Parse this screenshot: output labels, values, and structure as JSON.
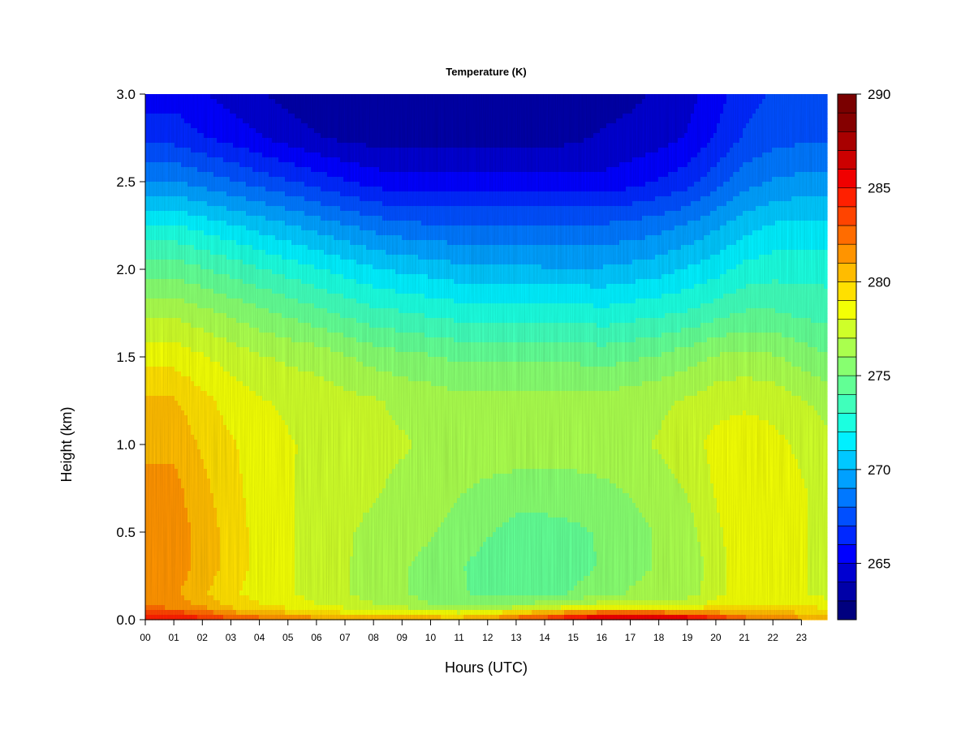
{
  "chart_data": {
    "type": "heatmap",
    "title": "Temperature (K)",
    "xlabel": "Hours (UTC)",
    "ylabel": "Height (km)",
    "x_ticks": [
      "00",
      "01",
      "02",
      "03",
      "04",
      "05",
      "06",
      "07",
      "08",
      "09",
      "10",
      "11",
      "12",
      "13",
      "14",
      "15",
      "16",
      "17",
      "18",
      "19",
      "20",
      "21",
      "22",
      "23"
    ],
    "xlim": [
      0,
      23.9
    ],
    "y_ticks": [
      "0.0",
      "0.5",
      "1.0",
      "1.5",
      "2.0",
      "2.5",
      "3.0"
    ],
    "ylim": [
      0,
      3.0
    ],
    "colorbar": {
      "min": 262,
      "max": 290,
      "step": 1,
      "tick_labels": [
        "265",
        "270",
        "275",
        "280",
        "285",
        "290"
      ],
      "colors": [
        "#00007f",
        "#0000a8",
        "#0000d1",
        "#0000ff",
        "#0028ff",
        "#004fff",
        "#0078ff",
        "#00a0ff",
        "#00c8ff",
        "#00f0ff",
        "#1bffe0",
        "#40ffbb",
        "#62ff95",
        "#87ff70",
        "#aaff4e",
        "#cfff29",
        "#f3ff05",
        "#ffe000",
        "#ffbc00",
        "#ff9400",
        "#ff6c00",
        "#ff4400",
        "#ff2000",
        "#f00000",
        "#cc0000",
        "#a80000",
        "#850000",
        "#7a0000"
      ]
    },
    "heights_km": [
      0.0,
      0.03,
      0.08,
      0.15,
      0.3,
      0.5,
      0.75,
      1.0,
      1.25,
      1.5,
      1.75,
      2.0,
      2.25,
      2.5,
      2.75,
      3.0
    ],
    "hours": [
      0,
      1,
      2,
      3,
      4,
      5,
      6,
      7,
      8,
      9,
      10,
      11,
      12,
      13,
      14,
      15,
      16,
      17,
      18,
      19,
      20,
      21,
      22,
      23,
      23.9
    ],
    "values_K": [
      [
        285.5,
        285.2,
        284.6,
        283.6,
        282.9,
        282.3,
        281.8,
        281.3,
        281.3,
        281.2,
        281.1,
        281.1,
        281.6,
        283.0,
        284.0,
        286.0,
        287.5,
        287.5,
        287.5,
        287.0,
        285.0,
        283.0,
        282.0,
        281.5,
        281.3
      ],
      [
        284.0,
        283.8,
        283.0,
        281.6,
        281.0,
        280.3,
        279.8,
        279.3,
        279.0,
        279.0,
        278.8,
        278.6,
        279.0,
        280.6,
        281.6,
        282.6,
        283.5,
        283.5,
        283.5,
        282.8,
        281.8,
        281.0,
        280.6,
        280.3,
        280.2
      ],
      [
        281.5,
        281.5,
        280.8,
        279.6,
        279.1,
        278.6,
        278.1,
        277.6,
        277.1,
        276.6,
        276.1,
        276.0,
        275.9,
        276.1,
        276.6,
        277.1,
        277.6,
        277.6,
        277.6,
        277.6,
        278.6,
        279.1,
        278.9,
        278.8,
        278.6
      ],
      [
        281.0,
        281.2,
        280.2,
        279.2,
        278.6,
        278.1,
        277.6,
        277.1,
        276.6,
        276.1,
        275.6,
        275.1,
        274.8,
        274.6,
        274.6,
        275.1,
        275.6,
        276.1,
        276.6,
        276.6,
        277.6,
        278.6,
        278.6,
        278.1,
        277.6
      ],
      [
        281.6,
        281.6,
        280.6,
        279.6,
        278.6,
        278.1,
        277.6,
        277.1,
        276.6,
        276.1,
        275.6,
        275.1,
        274.6,
        274.1,
        274.1,
        274.6,
        275.1,
        275.6,
        276.1,
        276.1,
        277.6,
        278.6,
        278.6,
        278.1,
        277.6
      ],
      [
        281.6,
        281.6,
        280.6,
        279.6,
        278.6,
        278.1,
        277.6,
        277.1,
        276.8,
        276.6,
        276.1,
        275.6,
        275.1,
        274.6,
        274.6,
        274.8,
        275.1,
        275.6,
        276.1,
        276.6,
        277.8,
        278.6,
        278.6,
        278.1,
        277.6
      ],
      [
        281.3,
        281.3,
        280.3,
        279.3,
        278.6,
        278.1,
        277.6,
        277.3,
        277.1,
        276.8,
        276.6,
        276.1,
        275.8,
        275.6,
        275.6,
        275.6,
        275.8,
        276.1,
        276.6,
        277.1,
        278.1,
        278.8,
        278.6,
        278.1,
        277.6
      ],
      [
        280.8,
        280.8,
        279.8,
        279.1,
        278.6,
        278.1,
        277.8,
        277.6,
        277.3,
        277.1,
        276.8,
        276.6,
        276.6,
        276.6,
        276.6,
        276.6,
        276.6,
        276.8,
        277.1,
        277.6,
        278.3,
        278.6,
        278.3,
        277.8,
        277.3
      ],
      [
        280.1,
        280.1,
        279.3,
        278.6,
        278.1,
        277.8,
        277.6,
        277.3,
        277.1,
        276.8,
        276.6,
        276.3,
        276.3,
        276.3,
        276.3,
        276.3,
        276.3,
        276.6,
        276.8,
        277.1,
        277.6,
        277.8,
        277.6,
        277.1,
        276.6
      ],
      [
        278.6,
        278.6,
        278.1,
        277.6,
        277.1,
        276.8,
        276.6,
        276.1,
        275.6,
        275.3,
        275.1,
        274.8,
        274.8,
        274.8,
        274.8,
        274.8,
        274.6,
        274.8,
        275.1,
        275.6,
        276.1,
        276.3,
        276.1,
        275.6,
        275.1
      ],
      [
        276.8,
        276.8,
        276.3,
        275.8,
        275.3,
        274.8,
        274.3,
        273.8,
        273.3,
        273.1,
        272.8,
        272.6,
        272.6,
        272.6,
        272.6,
        272.6,
        272.3,
        272.6,
        272.8,
        273.1,
        273.6,
        274.1,
        274.1,
        273.8,
        273.6
      ],
      [
        274.6,
        274.6,
        274.1,
        273.6,
        273.1,
        272.6,
        272.1,
        271.6,
        271.1,
        270.8,
        270.6,
        270.3,
        270.3,
        270.3,
        270.1,
        270.1,
        270.1,
        270.3,
        270.6,
        271.1,
        271.6,
        272.3,
        272.6,
        272.6,
        272.6
      ],
      [
        272.1,
        272.1,
        271.6,
        271.1,
        270.6,
        270.1,
        269.6,
        269.1,
        268.6,
        268.3,
        268.1,
        268.1,
        268.1,
        268.1,
        268.1,
        268.1,
        268.1,
        268.3,
        268.6,
        269.1,
        269.8,
        270.6,
        271.1,
        271.3,
        271.3
      ],
      [
        269.1,
        269.1,
        268.6,
        268.1,
        267.6,
        267.1,
        266.6,
        266.1,
        265.6,
        265.3,
        265.3,
        265.3,
        265.3,
        265.3,
        265.3,
        265.3,
        265.3,
        265.6,
        266.1,
        266.6,
        267.6,
        268.6,
        269.1,
        269.3,
        269.3
      ],
      [
        266.6,
        266.6,
        266.1,
        265.6,
        265.1,
        264.6,
        264.1,
        263.8,
        263.6,
        263.6,
        263.6,
        263.6,
        263.6,
        263.6,
        263.6,
        263.8,
        264.1,
        264.3,
        264.6,
        265.1,
        266.1,
        267.1,
        267.6,
        267.8,
        267.8
      ],
      [
        265.6,
        265.6,
        265.1,
        264.6,
        264.1,
        263.6,
        263.3,
        263.1,
        263.1,
        263.1,
        263.1,
        263.1,
        263.1,
        263.1,
        263.1,
        263.3,
        263.6,
        263.8,
        264.1,
        264.6,
        265.6,
        266.6,
        267.1,
        267.3,
        267.3
      ]
    ]
  }
}
